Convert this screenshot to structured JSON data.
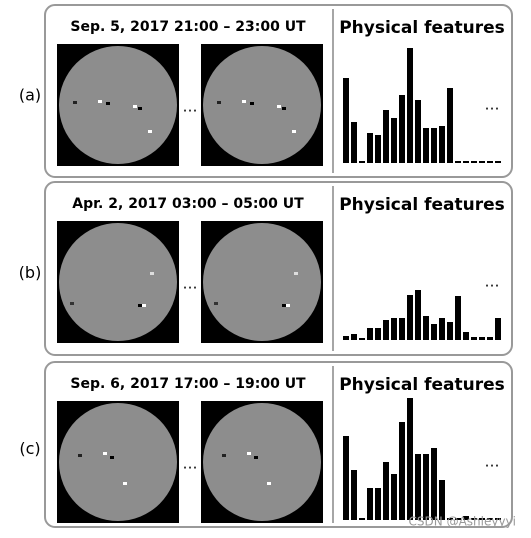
{
  "panels": [
    {
      "label": "(a)",
      "title": "Sep. 5, 2017 21:00 – 23:00 UT",
      "image_gap": "…",
      "features_title": "Physical features",
      "chart_more": "…",
      "features": {
        "type": "bar",
        "color": "#000000",
        "values": [
          85,
          41,
          2,
          30,
          28,
          53,
          45,
          68,
          115,
          63,
          35,
          35,
          37,
          75,
          2,
          2,
          2,
          2,
          2,
          2
        ]
      }
    },
    {
      "label": "(b)",
      "title": "Apr. 2, 2017 03:00 – 05:00 UT",
      "image_gap": "…",
      "features_title": "Physical features",
      "chart_more": "…",
      "features": {
        "type": "bar",
        "color": "#000000",
        "values": [
          4,
          6,
          2,
          12,
          12,
          20,
          22,
          22,
          45,
          50,
          24,
          16,
          22,
          18,
          44,
          8,
          3,
          3,
          3,
          22
        ]
      }
    },
    {
      "label": "(c)",
      "title": "Sep. 6, 2017 17:00 – 19:00 UT",
      "image_gap": "…",
      "features_title": "Physical features",
      "chart_more": "…",
      "features": {
        "type": "bar",
        "color": "#000000",
        "values": [
          84,
          50,
          2,
          32,
          32,
          58,
          46,
          98,
          122,
          66,
          66,
          72,
          40,
          2,
          2,
          4,
          2,
          2,
          2,
          2
        ]
      }
    }
  ],
  "watermark": "CSDN @Ashleyyyi"
}
